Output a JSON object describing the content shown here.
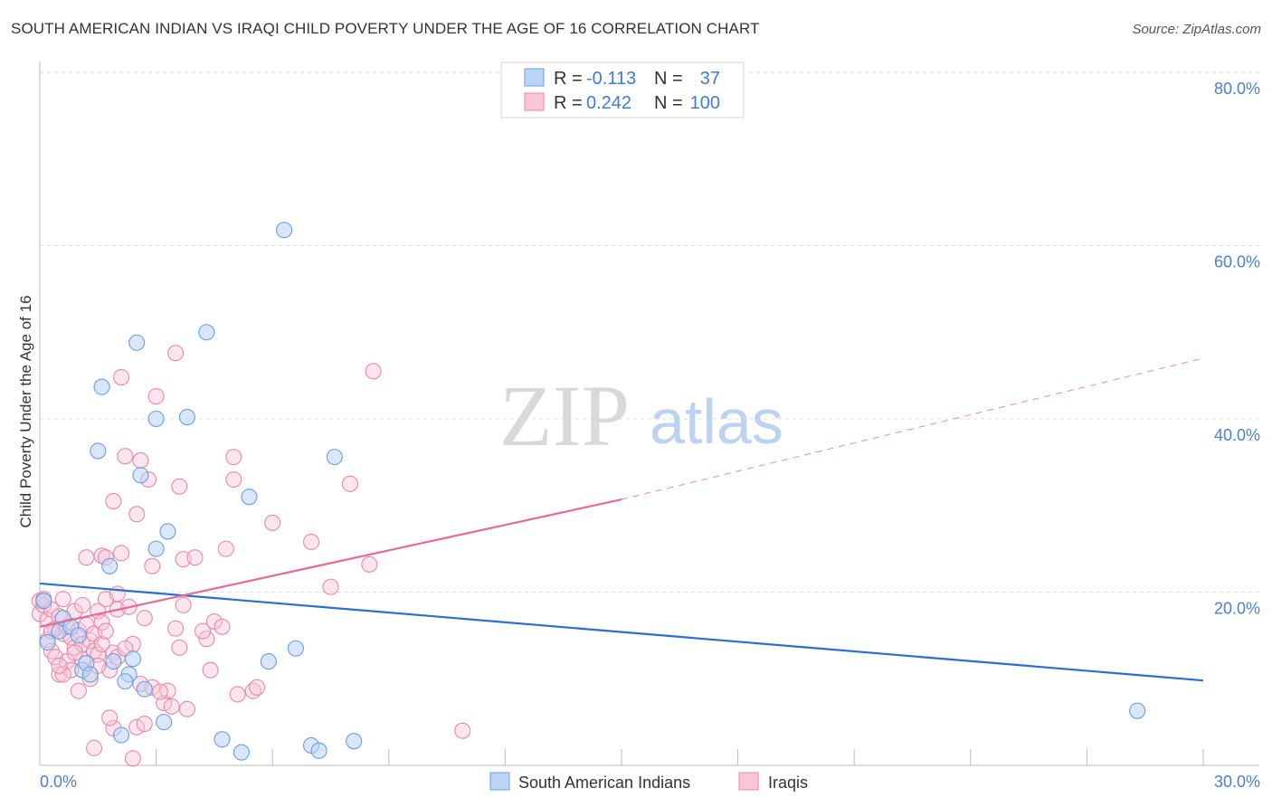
{
  "title": "SOUTH AMERICAN INDIAN VS IRAQI CHILD POVERTY UNDER THE AGE OF 16 CORRELATION CHART",
  "source": "Source: ZipAtlas.com",
  "watermark": {
    "part1": "ZIP",
    "part2": "atlas"
  },
  "legend": {
    "row1": {
      "r_label": "R =",
      "r_value": "-0.113",
      "n_label": "N =",
      "n_value": "37"
    },
    "row2": {
      "r_label": "R =",
      "r_value": "0.242",
      "n_label": "N =",
      "n_value": "100"
    }
  },
  "bottom_legend": {
    "series1": "South American Indians",
    "series2": "Iraqis"
  },
  "colors": {
    "blue_fill": "#bcd4f5",
    "blue_stroke": "#6b9de0",
    "blue_line": "#2a6fd0",
    "pink_fill": "#f8c6d6",
    "pink_stroke": "#e88aa8",
    "pink_line": "#e56b96",
    "tick_text": "#4a7fd4",
    "grid": "#dddddd"
  },
  "chart_data": {
    "type": "scatter",
    "title": "SOUTH AMERICAN INDIAN VS IRAQI CHILD POVERTY UNDER THE AGE OF 16 CORRELATION CHART",
    "xlabel": "",
    "ylabel": "Child Poverty Under the Age of 16",
    "xlim": [
      0,
      30
    ],
    "ylim": [
      0,
      80
    ],
    "x_ticks": [
      "0.0%",
      "30.0%"
    ],
    "y_ticks": [
      "20.0%",
      "40.0%",
      "60.0%",
      "80.0%"
    ],
    "grid": true,
    "legend_position": "top-center",
    "series": [
      {
        "name": "South American Indians",
        "r": -0.113,
        "n": 37,
        "trend": {
          "x": [
            0,
            30
          ],
          "y": [
            21.0,
            9.8
          ]
        },
        "points": [
          [
            0.2,
            14.2
          ],
          [
            0.5,
            15.5
          ],
          [
            0.6,
            17.0
          ],
          [
            0.8,
            16.0
          ],
          [
            1.0,
            15.0
          ],
          [
            1.1,
            11.0
          ],
          [
            1.2,
            11.8
          ],
          [
            1.3,
            10.5
          ],
          [
            1.5,
            36.3
          ],
          [
            1.6,
            43.7
          ],
          [
            1.8,
            23.0
          ],
          [
            1.9,
            12.0
          ],
          [
            2.1,
            3.5
          ],
          [
            2.3,
            10.5
          ],
          [
            2.4,
            12.3
          ],
          [
            2.5,
            48.8
          ],
          [
            2.6,
            33.5
          ],
          [
            2.7,
            8.8
          ],
          [
            3.0,
            40.0
          ],
          [
            3.0,
            25.0
          ],
          [
            3.2,
            5.0
          ],
          [
            3.3,
            27.0
          ],
          [
            3.8,
            40.2
          ],
          [
            4.3,
            50.0
          ],
          [
            4.7,
            3.0
          ],
          [
            5.2,
            1.5
          ],
          [
            5.4,
            31.0
          ],
          [
            5.9,
            12.0
          ],
          [
            6.3,
            61.8
          ],
          [
            6.6,
            13.5
          ],
          [
            7.0,
            2.3
          ],
          [
            7.2,
            1.7
          ],
          [
            7.6,
            35.6
          ],
          [
            8.1,
            2.8
          ],
          [
            28.3,
            6.3
          ],
          [
            0.1,
            19.0
          ],
          [
            2.2,
            9.7
          ]
        ]
      },
      {
        "name": "Iraqis",
        "r": 0.242,
        "n": 100,
        "trend": {
          "x": [
            0,
            15.0
          ],
          "y": [
            16.0,
            30.7
          ]
        },
        "trend_dashed": {
          "x": [
            15.0,
            30
          ],
          "y": [
            30.7,
            47.0
          ]
        },
        "points": [
          [
            0.0,
            19.0
          ],
          [
            0.0,
            17.5
          ],
          [
            0.1,
            18.5
          ],
          [
            0.1,
            19.2
          ],
          [
            0.2,
            16.8
          ],
          [
            0.2,
            14.5
          ],
          [
            0.3,
            18.0
          ],
          [
            0.3,
            13.2
          ],
          [
            0.4,
            15.8
          ],
          [
            0.4,
            12.5
          ],
          [
            0.5,
            17.2
          ],
          [
            0.5,
            10.5
          ],
          [
            0.6,
            19.2
          ],
          [
            0.6,
            15.2
          ],
          [
            0.7,
            16.0
          ],
          [
            0.7,
            12.0
          ],
          [
            0.8,
            14.8
          ],
          [
            0.8,
            11.0
          ],
          [
            0.9,
            17.8
          ],
          [
            0.9,
            13.6
          ],
          [
            1.0,
            15.6
          ],
          [
            1.0,
            8.6
          ],
          [
            1.1,
            14.0
          ],
          [
            1.1,
            12.2
          ],
          [
            1.2,
            16.2
          ],
          [
            1.3,
            14.4
          ],
          [
            1.3,
            10.0
          ],
          [
            1.4,
            15.2
          ],
          [
            1.4,
            13.2
          ],
          [
            1.4,
            2.0
          ],
          [
            1.5,
            17.8
          ],
          [
            1.5,
            12.8
          ],
          [
            1.6,
            24.2
          ],
          [
            1.6,
            16.5
          ],
          [
            1.6,
            14.0
          ],
          [
            1.7,
            19.2
          ],
          [
            1.7,
            24.0
          ],
          [
            1.7,
            15.5
          ],
          [
            1.8,
            11.0
          ],
          [
            1.9,
            30.5
          ],
          [
            1.9,
            13.0
          ],
          [
            1.9,
            4.3
          ],
          [
            2.0,
            19.8
          ],
          [
            2.0,
            18.0
          ],
          [
            2.1,
            24.5
          ],
          [
            2.1,
            44.8
          ],
          [
            2.2,
            35.7
          ],
          [
            2.3,
            18.3
          ],
          [
            2.4,
            0.8
          ],
          [
            2.4,
            14.0
          ],
          [
            2.5,
            29.0
          ],
          [
            2.5,
            4.4
          ],
          [
            2.6,
            35.2
          ],
          [
            2.6,
            9.4
          ],
          [
            2.7,
            4.8
          ],
          [
            2.8,
            33.0
          ],
          [
            2.9,
            23.0
          ],
          [
            3.0,
            42.6
          ],
          [
            3.2,
            7.2
          ],
          [
            3.3,
            8.6
          ],
          [
            3.4,
            6.8
          ],
          [
            3.5,
            15.8
          ],
          [
            3.5,
            47.6
          ],
          [
            3.6,
            32.2
          ],
          [
            3.6,
            13.6
          ],
          [
            3.7,
            18.5
          ],
          [
            3.7,
            23.8
          ],
          [
            4.0,
            24.0
          ],
          [
            4.3,
            14.6
          ],
          [
            4.4,
            11.0
          ],
          [
            4.5,
            16.6
          ],
          [
            4.7,
            16.0
          ],
          [
            4.8,
            25.0
          ],
          [
            5.0,
            35.6
          ],
          [
            5.1,
            8.2
          ],
          [
            5.5,
            8.6
          ],
          [
            5.6,
            9.0
          ],
          [
            5.0,
            33.0
          ],
          [
            6.0,
            28.0
          ],
          [
            7.0,
            25.8
          ],
          [
            7.5,
            20.6
          ],
          [
            8.0,
            32.5
          ],
          [
            8.5,
            23.2
          ],
          [
            8.6,
            45.5
          ],
          [
            10.9,
            4.0
          ],
          [
            1.2,
            24.0
          ],
          [
            0.6,
            10.5
          ],
          [
            2.9,
            9.0
          ],
          [
            3.1,
            8.5
          ],
          [
            2.0,
            12.5
          ],
          [
            1.8,
            5.5
          ],
          [
            0.9,
            13.0
          ],
          [
            1.1,
            18.5
          ],
          [
            4.2,
            15.5
          ],
          [
            2.7,
            17.0
          ],
          [
            3.8,
            6.5
          ],
          [
            0.3,
            15.5
          ],
          [
            1.5,
            11.5
          ],
          [
            2.2,
            13.5
          ],
          [
            0.5,
            11.5
          ]
        ]
      }
    ]
  }
}
